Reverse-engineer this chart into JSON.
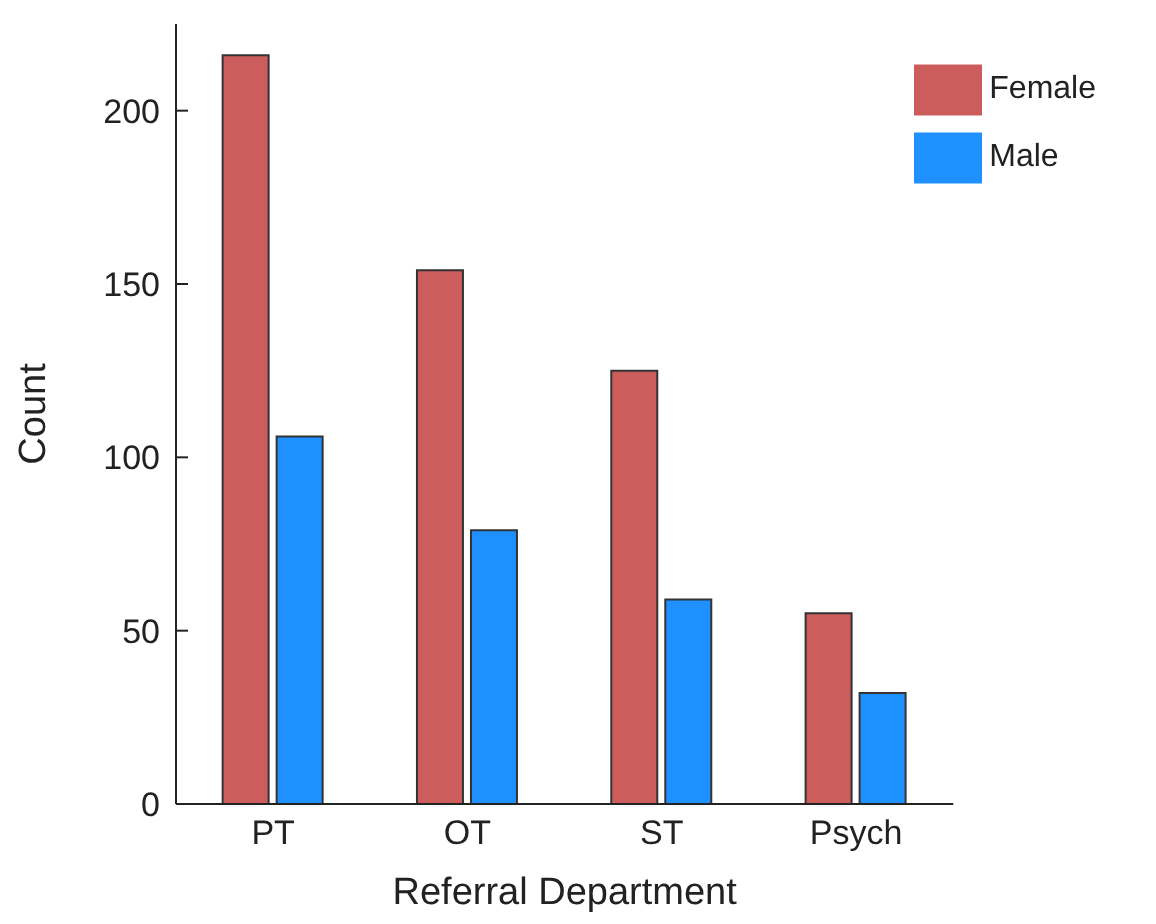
{
  "chart_data": {
    "type": "bar",
    "xlabel": "Referral Department",
    "ylabel": "Count",
    "categories": [
      "PT",
      "OT",
      "ST",
      "Psych"
    ],
    "series": [
      {
        "name": "Female",
        "color": "#cd5c5c",
        "values": [
          216,
          154,
          125,
          55
        ]
      },
      {
        "name": "Male",
        "color": "#1e90ff",
        "values": [
          106,
          79,
          59,
          32
        ]
      }
    ],
    "ylim": [
      0,
      225
    ],
    "yticks": [
      0,
      50,
      100,
      150,
      200
    ],
    "grid": false,
    "legend": "top right"
  }
}
